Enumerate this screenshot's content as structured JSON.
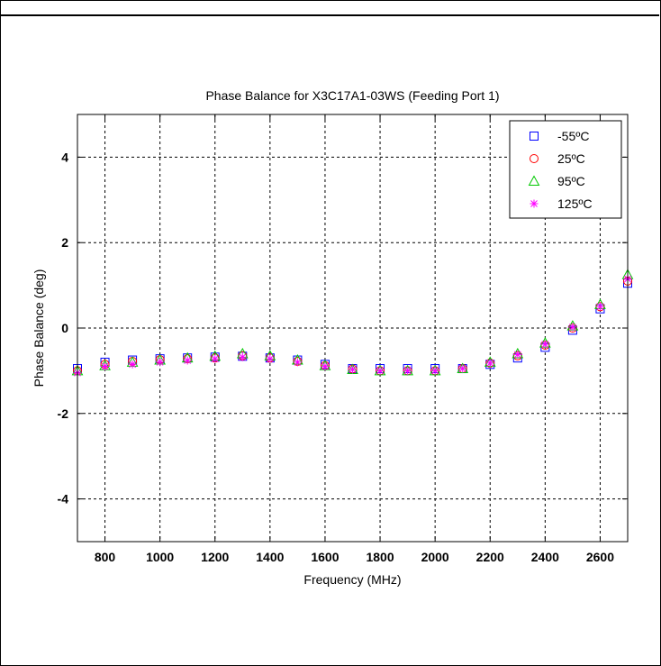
{
  "chart_data": {
    "type": "scatter",
    "title": "Phase Balance for X3C17A1-03WS (Feeding Port 1)",
    "xlabel": "Frequency (MHz)",
    "ylabel": "Phase Balance (deg)",
    "xlim": [
      700,
      2700
    ],
    "ylim": [
      -5,
      5
    ],
    "xticks": [
      800,
      1000,
      1200,
      1400,
      1600,
      1800,
      2000,
      2200,
      2400,
      2600
    ],
    "yticks": [
      -4,
      -2,
      0,
      2,
      4
    ],
    "grid": true,
    "legend_position": "top-right",
    "x": [
      700,
      800,
      900,
      1000,
      1100,
      1200,
      1300,
      1400,
      1500,
      1600,
      1700,
      1800,
      1900,
      2000,
      2100,
      2200,
      2300,
      2400,
      2500,
      2600,
      2700
    ],
    "series": [
      {
        "name": "-55ºC",
        "marker": "square",
        "color": "#0000ff",
        "values": [
          -0.95,
          -0.8,
          -0.75,
          -0.72,
          -0.7,
          -0.68,
          -0.66,
          -0.7,
          -0.75,
          -0.85,
          -0.95,
          -0.95,
          -0.95,
          -0.95,
          -0.95,
          -0.85,
          -0.7,
          -0.45,
          -0.05,
          0.45,
          1.05
        ]
      },
      {
        "name": "25ºC",
        "marker": "circle",
        "color": "#ff0000",
        "values": [
          -1.0,
          -0.85,
          -0.78,
          -0.74,
          -0.72,
          -0.7,
          -0.65,
          -0.7,
          -0.78,
          -0.88,
          -0.96,
          -1.0,
          -1.0,
          -1.0,
          -0.95,
          -0.82,
          -0.65,
          -0.4,
          0.0,
          0.5,
          1.1
        ]
      },
      {
        "name": "95ºC",
        "marker": "triangle",
        "color": "#00c800",
        "values": [
          -1.0,
          -0.88,
          -0.8,
          -0.75,
          -0.7,
          -0.66,
          -0.6,
          -0.65,
          -0.75,
          -0.88,
          -0.97,
          -1.0,
          -1.0,
          -1.0,
          -0.95,
          -0.8,
          -0.6,
          -0.35,
          0.05,
          0.55,
          1.25
        ]
      },
      {
        "name": "125ºC",
        "marker": "star",
        "color": "#ff00ff",
        "values": [
          -1.05,
          -0.9,
          -0.85,
          -0.8,
          -0.76,
          -0.72,
          -0.68,
          -0.72,
          -0.8,
          -0.9,
          -0.97,
          -1.0,
          -1.0,
          -1.0,
          -0.95,
          -0.82,
          -0.62,
          -0.38,
          0.02,
          0.5,
          1.15
        ]
      }
    ]
  }
}
